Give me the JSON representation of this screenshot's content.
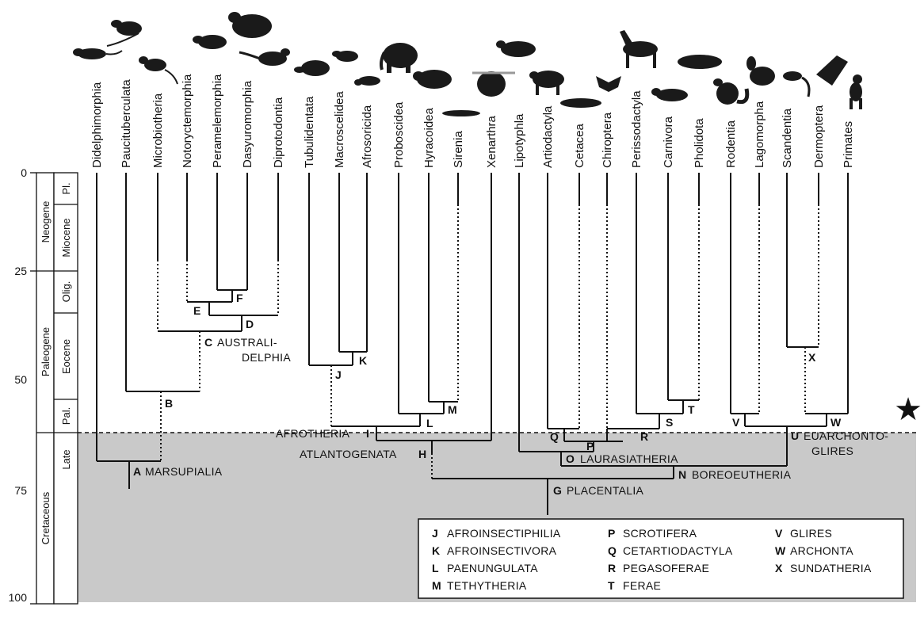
{
  "taxa": [
    "Didelphimorphia",
    "Paucituberculata",
    "Microbiotheria",
    "Notoryctemorphia",
    "Peramelemorphia",
    "Dasyuromorphia",
    "Diprotodontia",
    "Tubulidentata",
    "Macroscelidea",
    "Afrosoricida",
    "Proboscidea",
    "Hyracoidea",
    "Sirenia",
    "Xenarthra",
    "Lipotyphla",
    "Artiodactyla",
    "Cetacea",
    "Chiroptera",
    "Perissodactyla",
    "Carnivora",
    "Pholidota",
    "Rodentia",
    "Lagomorpha",
    "Scandentia",
    "Dermoptera",
    "Primates"
  ],
  "axis": {
    "ticks": [
      "0",
      "25",
      "50",
      "75",
      "100"
    ]
  },
  "periods": [
    "Neogene",
    "Paleogene",
    "Cretaceous"
  ],
  "epochs": [
    "Pl.",
    "Miocene",
    "Olig.",
    "Eocene",
    "Pal.",
    "Late"
  ],
  "nodes": {
    "A": {
      "letter": "A",
      "name": "MARSUPIALIA"
    },
    "B": {
      "letter": "B"
    },
    "C": {
      "letter": "C",
      "name_l1": "AUSTRALI-",
      "name_l2": "DELPHIA"
    },
    "D": {
      "letter": "D"
    },
    "E": {
      "letter": "E"
    },
    "F": {
      "letter": "F"
    },
    "G": {
      "letter": "G",
      "name": "PLACENTALIA"
    },
    "H": {
      "letter": "H",
      "name": "ATLANTOGENATA"
    },
    "I": {
      "letter": "I",
      "name": "AFROTHERIA"
    },
    "J": {
      "letter": "J"
    },
    "K": {
      "letter": "K"
    },
    "L": {
      "letter": "L"
    },
    "M": {
      "letter": "M"
    },
    "N": {
      "letter": "N",
      "name": "BOREOEUTHERIA"
    },
    "O": {
      "letter": "O",
      "name": "LAURASIATHERIA"
    },
    "P": {
      "letter": "P"
    },
    "Q": {
      "letter": "Q"
    },
    "R": {
      "letter": "R"
    },
    "S": {
      "letter": "S"
    },
    "T": {
      "letter": "T"
    },
    "U": {
      "letter": "U",
      "name_l1": "EUARCHONTO-",
      "name_l2": "GLIRES"
    },
    "V": {
      "letter": "V"
    },
    "W": {
      "letter": "W"
    },
    "X": {
      "letter": "X"
    }
  },
  "legend": [
    [
      {
        "letter": "J",
        "name": "AFROINSECTIPHILIA"
      },
      {
        "letter": "K",
        "name": "AFROINSECTIVORA"
      },
      {
        "letter": "L",
        "name": "PAENUNGULATA"
      },
      {
        "letter": "M",
        "name": "TETHYTHERIA"
      }
    ],
    [
      {
        "letter": "P",
        "name": "SCROTIFERA"
      },
      {
        "letter": "Q",
        "name": "CETARTIODACTYLA"
      },
      {
        "letter": "R",
        "name": "PEGASOFERAE"
      },
      {
        "letter": "T",
        "name": "FERAE"
      }
    ],
    [
      {
        "letter": "V",
        "name": "GLIRES"
      },
      {
        "letter": "W",
        "name": "ARCHONTA"
      },
      {
        "letter": "X",
        "name": "SUNDATHERIA"
      }
    ]
  ],
  "star_glyph": "★",
  "colors": {
    "cretaceous_shading": "#c9c9c9",
    "lines": "#111111"
  }
}
